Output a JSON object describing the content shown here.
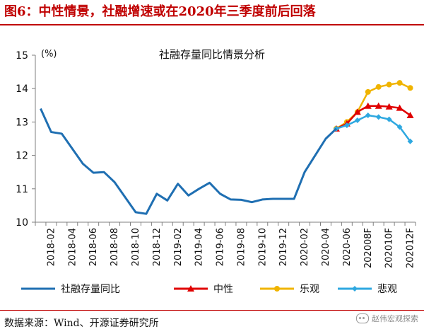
{
  "figure": {
    "title": "图6：中性情景，社融增速或在2020年三季度前后回落",
    "source": "数据来源：Wind、开源证券研究所",
    "watermark": "赵伟宏观探索"
  },
  "chart_data": {
    "type": "line",
    "title": "社融存量同比情景分析",
    "ylabel": "(%)",
    "xlabel": "",
    "ylim": [
      10,
      15
    ],
    "yticks": [
      10,
      11,
      12,
      13,
      14,
      15
    ],
    "grid": false,
    "legend_position": "bottom",
    "x": [
      "2018-01",
      "2018-02",
      "2018-03",
      "2018-04",
      "2018-05",
      "2018-06",
      "2018-07",
      "2018-08",
      "2018-09",
      "2018-10",
      "2018-11",
      "2018-12",
      "2019-01",
      "2019-02",
      "2019-03",
      "2019-04",
      "2019-05",
      "2019-06",
      "2019-07",
      "2019-08",
      "2019-09",
      "2019-10",
      "2019-11",
      "2019-12",
      "2020-01",
      "2020-02",
      "2020-03",
      "2020-04",
      "2020-05",
      "2020-06",
      "202007F",
      "202008F",
      "202009F",
      "202010F",
      "202011F",
      "202012F"
    ],
    "x_tick_labels": [
      "2018-02",
      "2018-04",
      "2018-06",
      "2018-08",
      "2018-10",
      "2018-12",
      "2019-02",
      "2019-04",
      "2019-06",
      "2019-08",
      "2019-10",
      "2019-12",
      "2020-02",
      "2020-04",
      "2020-06",
      "202008F",
      "202010F",
      "202012F"
    ],
    "series": [
      {
        "name": "社融存量同比",
        "color": "#1f6fb2",
        "marker": "none",
        "values": [
          13.4,
          12.7,
          12.65,
          12.2,
          11.75,
          11.48,
          11.5,
          11.2,
          10.75,
          10.3,
          10.25,
          10.85,
          10.65,
          11.15,
          10.8,
          11.0,
          11.18,
          10.85,
          10.68,
          10.67,
          10.6,
          10.68,
          10.7,
          10.7,
          10.7,
          11.5,
          12.0,
          12.5,
          12.8,
          null,
          null,
          null,
          null,
          null,
          null,
          null
        ]
      },
      {
        "name": "中性",
        "color": "#e00000",
        "marker": "triangle",
        "values": [
          null,
          null,
          null,
          null,
          null,
          null,
          null,
          null,
          null,
          null,
          null,
          null,
          null,
          null,
          null,
          null,
          null,
          null,
          null,
          null,
          null,
          null,
          null,
          null,
          null,
          null,
          null,
          null,
          12.8,
          12.95,
          13.3,
          13.48,
          13.48,
          13.46,
          13.42,
          13.2
        ]
      },
      {
        "name": "乐观",
        "color": "#f0b400",
        "marker": "circle",
        "values": [
          null,
          null,
          null,
          null,
          null,
          null,
          null,
          null,
          null,
          null,
          null,
          null,
          null,
          null,
          null,
          null,
          null,
          null,
          null,
          null,
          null,
          null,
          null,
          null,
          null,
          null,
          null,
          null,
          12.8,
          13.0,
          13.3,
          13.9,
          14.05,
          14.12,
          14.17,
          14.02
        ]
      },
      {
        "name": "悲观",
        "color": "#2ea8e0",
        "marker": "diamond",
        "values": [
          null,
          null,
          null,
          null,
          null,
          null,
          null,
          null,
          null,
          null,
          null,
          null,
          null,
          null,
          null,
          null,
          null,
          null,
          null,
          null,
          null,
          null,
          null,
          null,
          null,
          null,
          null,
          null,
          12.8,
          12.9,
          13.05,
          13.2,
          13.15,
          13.08,
          12.85,
          12.42
        ]
      }
    ]
  }
}
